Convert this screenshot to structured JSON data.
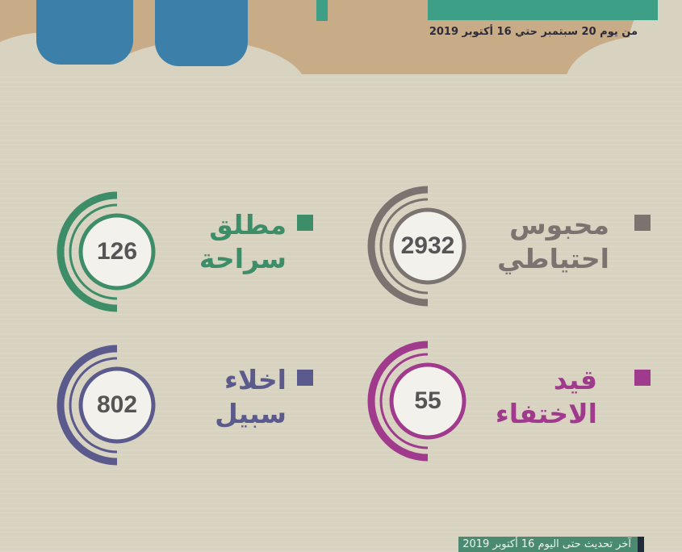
{
  "header": {
    "date_range": "من يوم 20 سبتمبر حتي 16 أكتوبر 2019"
  },
  "stats": [
    {
      "label1": "محبوس",
      "label2": "احتياطي",
      "value": "2932",
      "color": "#7b7370"
    },
    {
      "label1": "مطلق",
      "label2": "سراحة",
      "value": "126",
      "color": "#3d8e68"
    },
    {
      "label1": "قيد",
      "label2": "الاختفاء",
      "value": "55",
      "color": "#a03a8c"
    },
    {
      "label1": "اخلاء",
      "label2": "سبيل",
      "value": "802",
      "color": "#5a5a8c"
    }
  ],
  "footer": {
    "updated": "آخر تحديث حتى اليوم 16 أكتوبر 2019"
  }
}
